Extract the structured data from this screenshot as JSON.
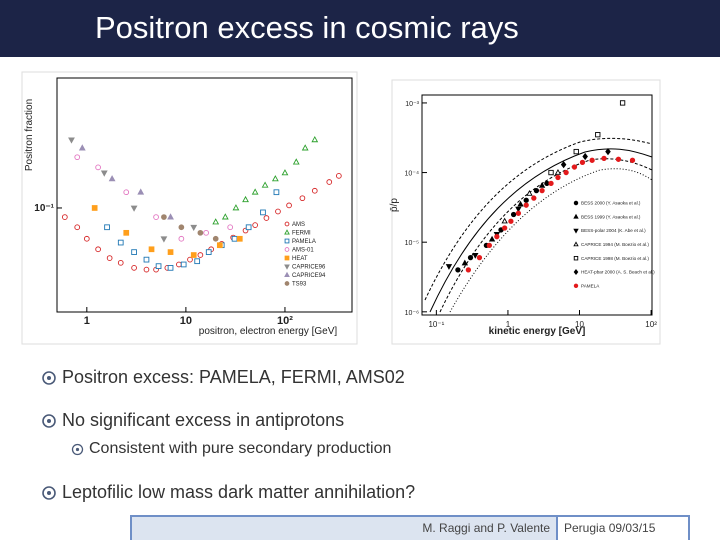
{
  "title": "Positron excess in cosmic rays",
  "chart_data": [
    {
      "type": "scatter",
      "xlabel": "positron, electron energy [GeV]",
      "ylabel": "Positron fraction",
      "xscale": "log",
      "yscale": "log",
      "xlim": [
        0.5,
        475
      ],
      "ylim": [
        0.03,
        0.45
      ],
      "xticks": [
        1,
        10,
        {
          "value": 100,
          "label": "10²"
        }
      ],
      "yticks": [
        {
          "value": 0.1,
          "label": "10⁻¹"
        }
      ],
      "legend": "lower right",
      "series": [
        {
          "name": "AMS",
          "color": "#d62728",
          "marker": "circle-open",
          "x": [
            0.6,
            0.8,
            1,
            1.3,
            1.7,
            2.2,
            3,
            4,
            5,
            6.5,
            8.5,
            11,
            14,
            18,
            23,
            30,
            40,
            50,
            65,
            85,
            110,
            150,
            200,
            280,
            350
          ],
          "values": [
            0.09,
            0.08,
            0.07,
            0.062,
            0.056,
            0.053,
            0.05,
            0.049,
            0.049,
            0.05,
            0.052,
            0.055,
            0.058,
            0.062,
            0.066,
            0.071,
            0.077,
            0.082,
            0.089,
            0.096,
            0.103,
            0.112,
            0.122,
            0.135,
            0.145
          ]
        },
        {
          "name": "FERMI",
          "color": "#2ca02c",
          "marker": "triangle-up-open",
          "x": [
            20,
            25,
            32,
            40,
            50,
            63,
            80,
            100,
            130,
            160,
            200
          ],
          "values": [
            0.085,
            0.09,
            0.1,
            0.11,
            0.12,
            0.13,
            0.14,
            0.15,
            0.17,
            0.2,
            0.22
          ]
        },
        {
          "name": "PAMELA",
          "color": "#1f77b4",
          "marker": "square-open",
          "x": [
            1.6,
            2.2,
            3,
            4,
            5.3,
            7,
            9.5,
            13,
            17,
            23,
            31,
            43,
            60,
            82
          ],
          "values": [
            0.08,
            0.067,
            0.06,
            0.055,
            0.051,
            0.05,
            0.052,
            0.054,
            0.06,
            0.065,
            0.07,
            0.08,
            0.095,
            0.12
          ]
        },
        {
          "name": "AMS-01",
          "color": "#e377c2",
          "marker": "circle-open",
          "x": [
            0.8,
            1.3,
            2.5,
            5,
            9,
            16,
            28
          ],
          "values": [
            0.18,
            0.16,
            0.12,
            0.09,
            0.07,
            0.075,
            0.08
          ]
        },
        {
          "name": "HEAT",
          "color": "#ff9f1c",
          "marker": "square",
          "x": [
            1.2,
            2.5,
            4.5,
            7,
            12,
            22,
            35
          ],
          "values": [
            0.1,
            0.075,
            0.062,
            0.06,
            0.058,
            0.065,
            0.07
          ]
        },
        {
          "name": "CAPRICE96",
          "color": "#8c8c8c",
          "marker": "triangle-down",
          "x": [
            0.7,
            1.5,
            3,
            6,
            12
          ],
          "values": [
            0.22,
            0.15,
            0.1,
            0.07,
            0.08
          ]
        },
        {
          "name": "CAPRICE94",
          "color": "#9b8fb5",
          "marker": "triangle-up",
          "x": [
            0.9,
            1.8,
            3.5,
            7
          ],
          "values": [
            0.2,
            0.14,
            0.12,
            0.09
          ]
        },
        {
          "name": "TS93",
          "color": "#a0856e",
          "marker": "circle",
          "x": [
            6,
            9,
            14,
            20
          ],
          "values": [
            0.09,
            0.08,
            0.075,
            0.07
          ]
        }
      ]
    },
    {
      "type": "scatter",
      "xlabel": "kinetic energy [GeV]",
      "ylabel": "p̄/p",
      "xscale": "log",
      "yscale": "log",
      "xlim": [
        0.063,
        103
      ],
      "ylim": [
        9e-07,
        0.0013
      ],
      "xticks": [
        {
          "value": 0.1,
          "label": "10⁻¹"
        },
        1,
        10,
        {
          "value": 100,
          "label": "10²"
        }
      ],
      "yticks": [
        {
          "value": 0.001,
          "label": "10⁻³"
        },
        {
          "value": 0.0001,
          "label": "10⁻⁴"
        },
        {
          "value": 1e-05,
          "label": "10⁻⁵"
        },
        {
          "value": 1e-06,
          "label": "10⁻⁶"
        }
      ],
      "legend": "lower right",
      "series": [
        {
          "name": "BESS 2000 (Y. Asaoka et al.)",
          "color": "#000000",
          "marker": "circle",
          "x": [
            0.2,
            0.3,
            0.5,
            0.8,
            1.2,
            1.8,
            2.5,
            3.5
          ],
          "values": [
            4e-06,
            6e-06,
            9e-06,
            1.5e-05,
            2.5e-05,
            4e-05,
            5.5e-05,
            7e-05
          ]
        },
        {
          "name": "BESS 1999 (Y. Asaoka et al.)",
          "color": "#000000",
          "marker": "triangle-up",
          "x": [
            0.25,
            0.6,
            1.5,
            3
          ],
          "values": [
            5e-06,
            1.1e-05,
            3.5e-05,
            6.5e-05
          ]
        },
        {
          "name": "BESS-polar 2004 (K. Abe et al.)",
          "color": "#000000",
          "marker": "triangle-down",
          "x": [
            0.15,
            0.35,
            0.7,
            1.4
          ],
          "values": [
            4.5e-06,
            6.5e-06,
            1.3e-05,
            3e-05
          ]
        },
        {
          "name": "CAPRICE 1994 (M. Boezio et al.)",
          "color": "#000000",
          "marker": "triangle-up-open",
          "x": [
            0.9,
            2,
            5
          ],
          "values": [
            2e-05,
            5e-05,
            0.0001
          ]
        },
        {
          "name": "CAPRICE 1998 (M. Boezio et al.)",
          "color": "#000000",
          "marker": "square-open",
          "x": [
            4,
            9,
            18,
            40
          ],
          "values": [
            0.0001,
            0.0002,
            0.00035,
            0.001
          ]
        },
        {
          "name": "HEAT-pbar 2000 (A. S. Beach et al.)",
          "color": "#000000",
          "marker": "diamond",
          "x": [
            6,
            12,
            25
          ],
          "values": [
            0.00013,
            0.00017,
            0.0002
          ]
        },
        {
          "name": "PAMELA",
          "color": "#e31a1c",
          "marker": "circle",
          "x": [
            0.28,
            0.4,
            0.55,
            0.7,
            0.9,
            1.1,
            1.4,
            1.8,
            2.3,
            3,
            4,
            5,
            6.5,
            8.5,
            11,
            15,
            22,
            35,
            55
          ],
          "values": [
            4e-06,
            6e-06,
            9e-06,
            1.2e-05,
            1.6e-05,
            2e-05,
            2.6e-05,
            3.4e-05,
            4.3e-05,
            5.5e-05,
            7e-05,
            8.5e-05,
            0.0001,
            0.00012,
            0.00014,
            0.00015,
            0.00016,
            0.000155,
            0.00015
          ]
        }
      ]
    }
  ],
  "bullets": [
    {
      "text": "Positron excess: PAMELA, FERMI, AMS02"
    },
    {
      "text": "No significant excess in antiprotons",
      "sub": [
        "Consistent with pure secondary production"
      ]
    },
    {
      "text": "Leptofilic low mass dark matter annihilation?"
    }
  ],
  "footer": {
    "authors": "M. Raggi and P. Valente",
    "place_date": "Perugia 09/03/15"
  }
}
